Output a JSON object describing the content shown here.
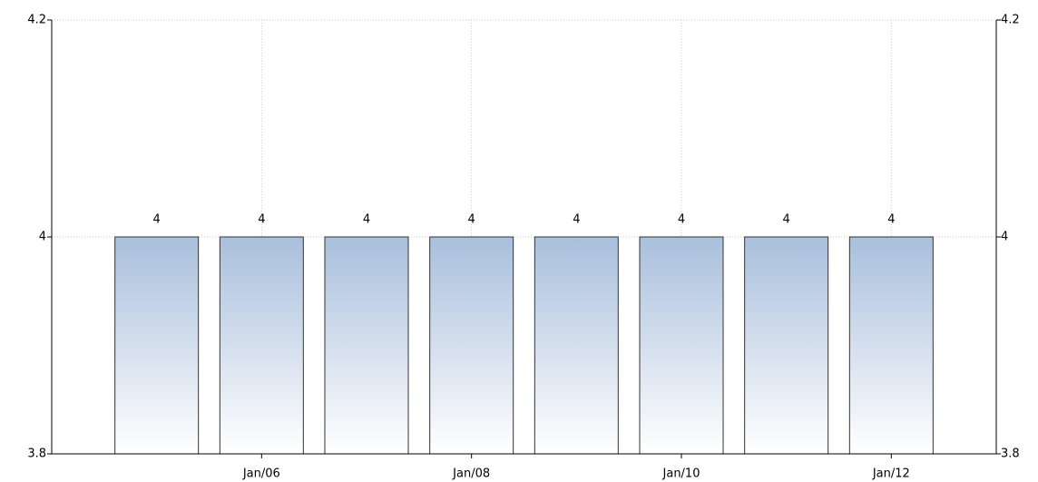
{
  "chart_data": {
    "type": "bar",
    "categories": [
      null,
      "Jan/06",
      null,
      "Jan/08",
      null,
      "Jan/10",
      null,
      "Jan/12"
    ],
    "values": [
      4,
      4,
      4,
      4,
      4,
      4,
      4,
      4
    ],
    "color": "#a9bfdc",
    "ylim": [
      3.8,
      4.2
    ],
    "yticks": [
      3.8,
      4,
      4.2
    ],
    "y2lim": [
      3.8,
      4.2
    ],
    "y2ticks": [
      3.8,
      4,
      4.2
    ],
    "grid": true
  }
}
